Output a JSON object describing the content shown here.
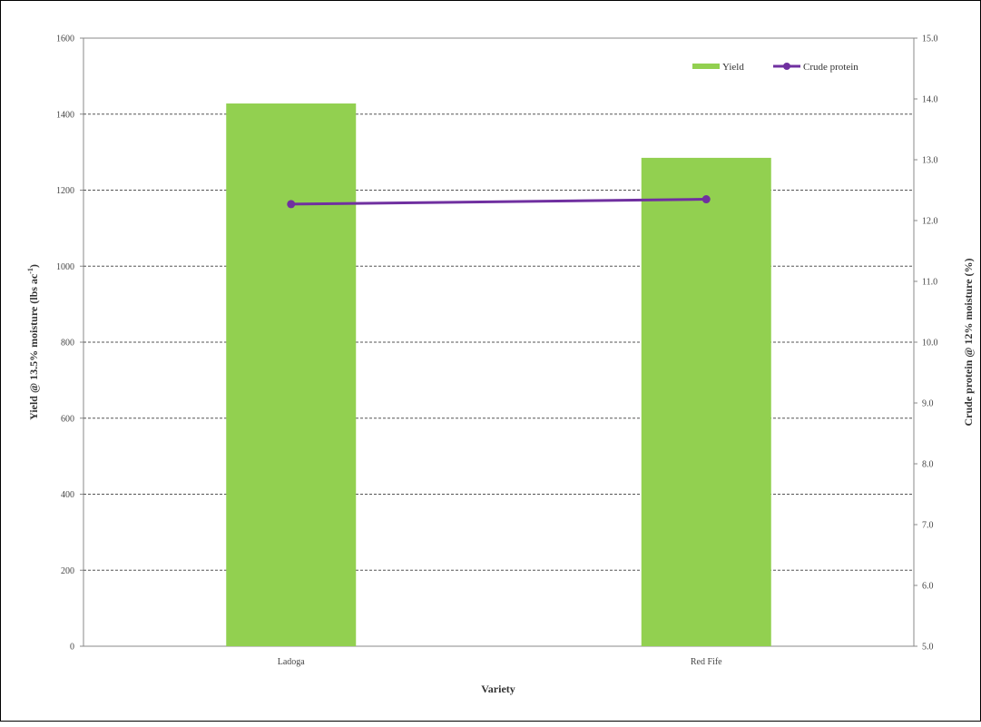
{
  "chart_data": {
    "type": "bar",
    "categories": [
      "Ladoga",
      "Red Fife"
    ],
    "series": [
      {
        "name": "Yield",
        "type": "bar",
        "axis": "left",
        "values": [
          1428,
          1285
        ]
      },
      {
        "name": "Crude protein",
        "type": "line",
        "axis": "right",
        "values": [
          12.27,
          12.35
        ]
      }
    ],
    "xlabel": "Variety",
    "ylabel_prefix": "Yield @ 13.5% moisture (lbs ac",
    "ylabel_sup": "-1",
    "ylabel_suffix": ")",
    "y2label": "Crude protein @ 12% moisture (%)",
    "ylim": [
      0,
      1600
    ],
    "y_ticks": [
      "0",
      "200",
      "400",
      "600",
      "800",
      "1000",
      "1200",
      "1400",
      "1600"
    ],
    "y2lim": [
      5.0,
      15.0
    ],
    "y2_ticks": [
      "5.0",
      "6.0",
      "7.0",
      "8.0",
      "9.0",
      "10.0",
      "11.0",
      "12.0",
      "13.0",
      "14.0",
      "15.0"
    ],
    "grid": true,
    "legend": "top-right",
    "colors": {
      "Yield": "#92d050",
      "Crude protein": "#7030a0"
    }
  }
}
